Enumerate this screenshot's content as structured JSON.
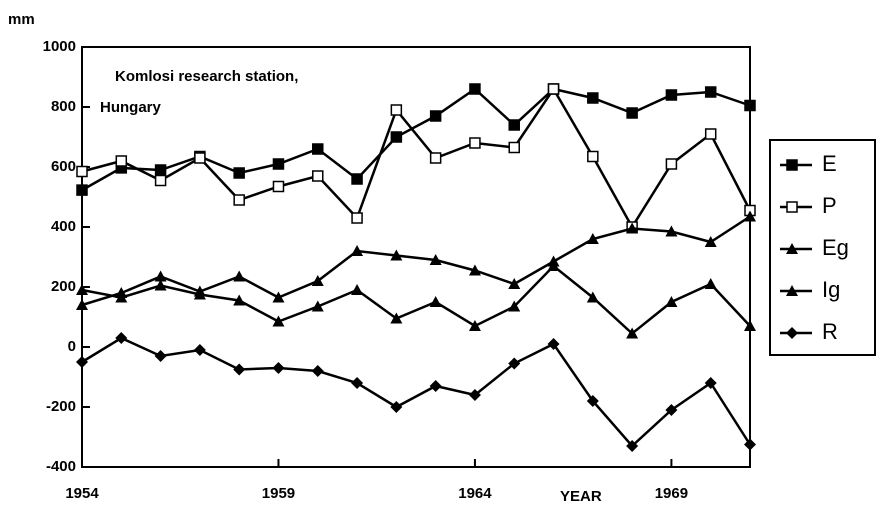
{
  "chart_data": {
    "type": "line",
    "y_label": "mm",
    "x_label": "YEAR",
    "annotation": [
      "Komlosi research station,",
      "Hungary"
    ],
    "x": [
      1954,
      1955,
      1956,
      1957,
      1958,
      1959,
      1960,
      1961,
      1962,
      1963,
      1964,
      1965,
      1966,
      1967,
      1968,
      1969,
      1970,
      1971
    ],
    "xlim": [
      1954,
      1971
    ],
    "xticks": [
      1954,
      1959,
      1964,
      1969
    ],
    "ylim": [
      -400,
      1000
    ],
    "yticks": [
      -400,
      -200,
      0,
      200,
      400,
      600,
      800,
      1000
    ],
    "series": [
      {
        "name": "E",
        "color": "#000000",
        "marker": "square-filled",
        "values": [
          523,
          597,
          590,
          635,
          580,
          610,
          660,
          560,
          700,
          770,
          860,
          740,
          860,
          830,
          780,
          840,
          850,
          805
        ]
      },
      {
        "name": "P",
        "color": "#000000",
        "marker": "square-open",
        "values": [
          585,
          620,
          555,
          630,
          490,
          535,
          570,
          430,
          790,
          630,
          680,
          665,
          860,
          635,
          400,
          610,
          710,
          455
        ]
      },
      {
        "name": "Eg",
        "color": "#000000",
        "marker": "triangle",
        "values": [
          140,
          180,
          235,
          185,
          235,
          165,
          220,
          320,
          305,
          290,
          255,
          210,
          285,
          360,
          395,
          385,
          350,
          435
        ]
      },
      {
        "name": "Ig",
        "color": "#000000",
        "marker": "triangle",
        "values": [
          190,
          165,
          205,
          175,
          155,
          85,
          135,
          190,
          95,
          150,
          70,
          135,
          270,
          165,
          45,
          150,
          210,
          70
        ]
      },
      {
        "name": "R",
        "color": "#000000",
        "marker": "diamond",
        "values": [
          -50,
          30,
          -30,
          -10,
          -75,
          -70,
          -80,
          -120,
          -200,
          -130,
          -160,
          -55,
          10,
          -180,
          -330,
          -210,
          -120,
          -325
        ]
      }
    ]
  }
}
